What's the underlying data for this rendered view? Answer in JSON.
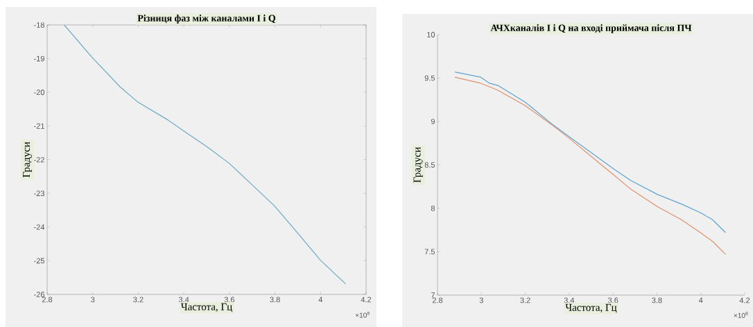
{
  "chart_data": [
    {
      "type": "line",
      "title": "Різниця фаз між каналами I  і  Q",
      "xlabel": "Частота, Гц",
      "ylabel": "Градуси",
      "x": [
        2.875,
        2.998,
        3.119,
        3.198,
        3.33,
        3.398,
        3.498,
        3.598,
        3.688,
        3.799,
        3.899,
        3.999,
        4.11
      ],
      "values": [
        -18,
        -18.97,
        -19.83,
        -20.29,
        -20.82,
        -21.14,
        -21.6,
        -22.1,
        -22.67,
        -23.38,
        -24.17,
        -24.98,
        -25.69
      ],
      "color": "#6aa8c4",
      "xlim": [
        2.8,
        4.2
      ],
      "ylim": [
        -26,
        -18
      ],
      "xticks": [
        2.8,
        3,
        3.2,
        3.4,
        3.6,
        3.8,
        4,
        4.2
      ],
      "yticks": [
        -26,
        -25,
        -24,
        -23,
        -22,
        -21,
        -20,
        -19,
        -18
      ],
      "annotations": [
        "×10$^{8}$"
      ]
    },
    {
      "type": "line",
      "title": "АЧХканалів I  і  Q на вході приймача після ПЧ",
      "xlabel": "Частота, Гц",
      "ylabel": "Градуси",
      "x": [
        2.879,
        2.997,
        3.037,
        3.075,
        3.201,
        3.327,
        3.403,
        3.485,
        3.605,
        3.681,
        3.802,
        3.911,
        3.998,
        4.053,
        4.113
      ],
      "series": [
        {
          "color": "#5ea4cf",
          "values": [
            9.57,
            9.51,
            9.44,
            9.415,
            9.22,
            8.96,
            8.82,
            8.67,
            8.45,
            8.32,
            8.16,
            8.05,
            7.95,
            7.87,
            7.72
          ]
        },
        {
          "color": "#e0906c",
          "values": [
            9.51,
            9.44,
            9.4,
            9.36,
            9.18,
            8.95,
            8.8,
            8.63,
            8.38,
            8.22,
            8.02,
            7.87,
            7.72,
            7.62,
            7.47
          ]
        }
      ],
      "xlim": [
        2.8,
        4.2
      ],
      "ylim": [
        7,
        10
      ],
      "xticks": [
        2.8,
        3,
        3.2,
        3.4,
        3.6,
        3.8,
        4,
        4.2
      ],
      "yticks": [
        7,
        7.5,
        8,
        8.5,
        9,
        9.5,
        10
      ],
      "annotations": [
        "×10$^{8}$"
      ]
    }
  ]
}
